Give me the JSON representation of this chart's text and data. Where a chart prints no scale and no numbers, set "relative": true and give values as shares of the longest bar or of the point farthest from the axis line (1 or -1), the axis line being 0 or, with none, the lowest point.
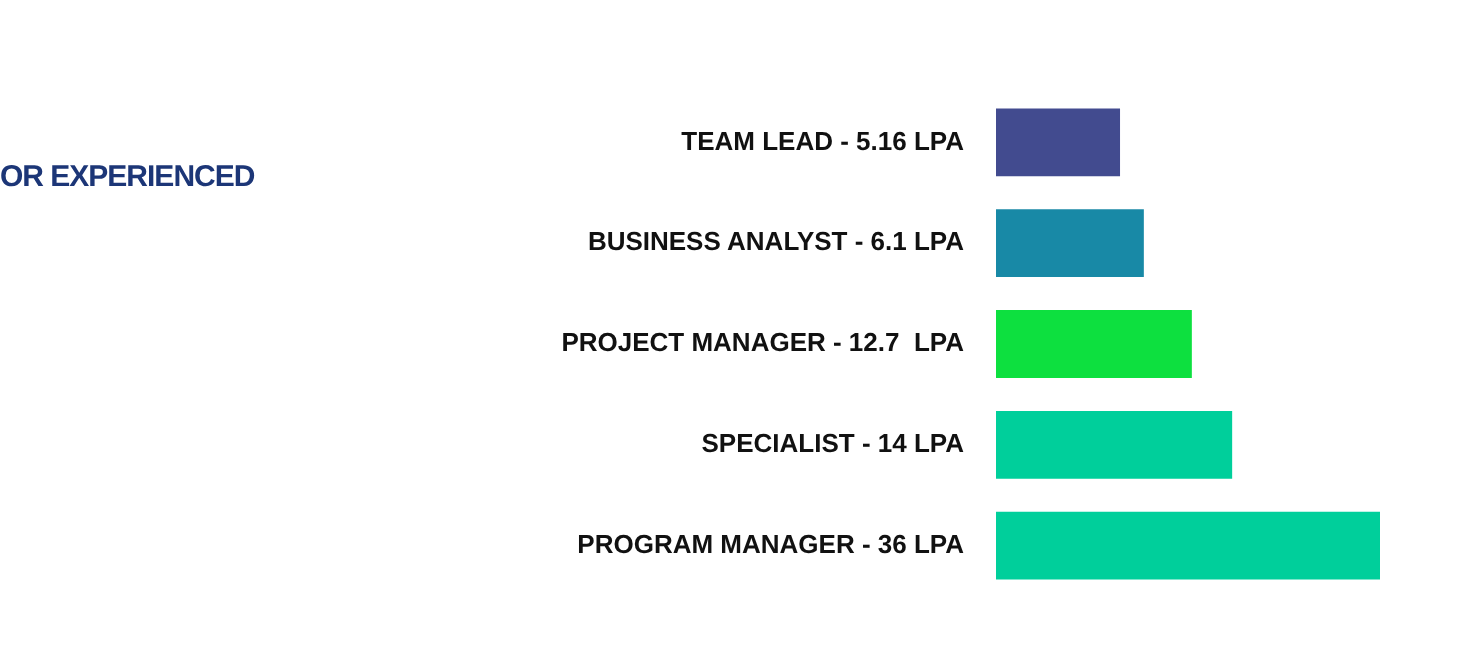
{
  "chart_data": {
    "type": "bar",
    "orientation": "horizontal",
    "relative": true,
    "title": "OR EXPERIENCED",
    "categories": [
      "TEAM LEAD - 5.16 LPA",
      "BUSINESS ANALYST - 6.1 LPA",
      "PROJECT MANAGER - 12.7  LPA",
      "SPECIALIST - 14 LPA",
      "PROGRAM MANAGER - 36 LPA"
    ],
    "values": [
      0.323,
      0.385,
      0.51,
      0.615,
      1
    ],
    "colors": [
      "#424b8f",
      "#1889a6",
      "#0de03f",
      "#00cf9b",
      "#00cf9b"
    ],
    "legend": false
  }
}
